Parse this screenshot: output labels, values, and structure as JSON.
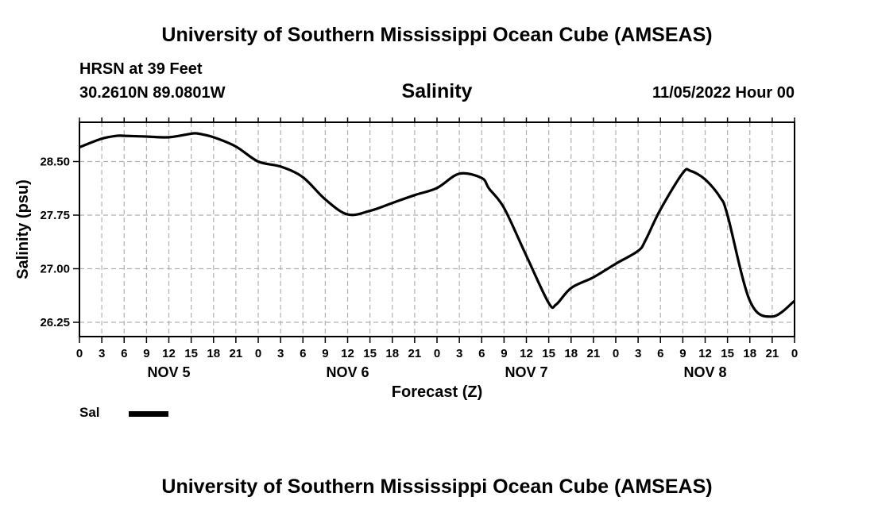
{
  "header": {
    "title": "University of Southern Mississippi Ocean Cube (AMSEAS)",
    "station": "HRSN at 39 Feet",
    "coords": "30.2610N  89.0801W",
    "datetime": "11/05/2022 Hour 00",
    "footer": "University of Southern Mississippi Ocean Cube (AMSEAS)"
  },
  "legend": {
    "label": "Sal"
  },
  "chart_data": {
    "type": "line",
    "title": "Salinity",
    "xlabel": "Forecast (Z)",
    "ylabel": "Salinity (psu)",
    "xlim": [
      0,
      96
    ],
    "ylim": [
      26.05,
      29.05
    ],
    "yticks": [
      26.25,
      27.0,
      27.75,
      28.5
    ],
    "ytick_labels": [
      "26.25",
      "27.00",
      "27.75",
      "28.50"
    ],
    "xticks": [
      0,
      3,
      6,
      9,
      12,
      15,
      18,
      21,
      24,
      27,
      30,
      33,
      36,
      39,
      42,
      45,
      48,
      51,
      54,
      57,
      60,
      63,
      66,
      69,
      72,
      75,
      78,
      81,
      84,
      87,
      90,
      93,
      96
    ],
    "xtick_labels": [
      "0",
      "3",
      "6",
      "9",
      "12",
      "15",
      "18",
      "21",
      "0",
      "3",
      "6",
      "9",
      "12",
      "15",
      "18",
      "21",
      "0",
      "3",
      "6",
      "9",
      "12",
      "15",
      "18",
      "21",
      "0",
      "3",
      "6",
      "9",
      "12",
      "15",
      "18",
      "21",
      "0"
    ],
    "day_labels": [
      {
        "label": "NOV 5",
        "x": 12
      },
      {
        "label": "NOV 6",
        "x": 36
      },
      {
        "label": "NOV 7",
        "x": 60
      },
      {
        "label": "NOV 8",
        "x": 84
      }
    ],
    "grid": true,
    "series": [
      {
        "name": "Sal",
        "x": [
          0,
          3,
          5,
          6,
          9,
          12,
          15,
          16,
          18,
          21,
          24,
          27,
          30,
          33,
          36,
          39,
          42,
          45,
          48,
          51,
          54,
          55,
          57,
          60,
          63,
          64,
          66,
          69,
          72,
          75,
          76,
          78,
          81,
          82,
          84,
          86,
          87,
          90,
          93,
          96
        ],
        "y": [
          28.7,
          28.82,
          28.86,
          28.86,
          28.85,
          28.84,
          28.89,
          28.89,
          28.84,
          28.71,
          28.5,
          28.43,
          28.28,
          27.97,
          27.76,
          27.81,
          27.92,
          28.03,
          28.13,
          28.33,
          28.27,
          28.12,
          27.85,
          27.18,
          26.52,
          26.5,
          26.73,
          26.88,
          27.07,
          27.25,
          27.4,
          27.83,
          28.34,
          28.37,
          28.25,
          28.0,
          27.75,
          26.55,
          26.33,
          26.55
        ]
      }
    ]
  }
}
